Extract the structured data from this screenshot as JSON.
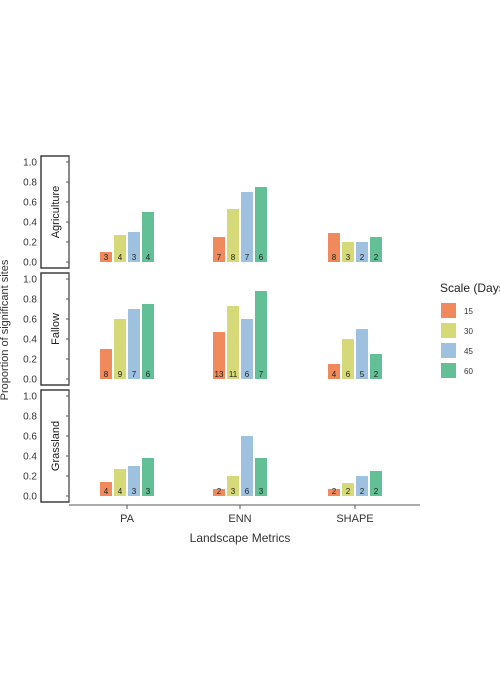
{
  "chart_data": {
    "type": "bar",
    "xlabel": "Landscape Metrics",
    "ylabel": "Proportion of significant sites",
    "ylim": [
      0,
      1.0
    ],
    "yticks": [
      "0.0",
      "0.2",
      "0.4",
      "0.6",
      "0.8",
      "1.0"
    ],
    "categories": [
      "PA",
      "ENN",
      "SHAPE"
    ],
    "grid": false,
    "legend": {
      "title": "Scale (Days)",
      "position": "right",
      "entries": [
        "15",
        "30",
        "45",
        "60"
      ],
      "colors": [
        "#f08a5d",
        "#d5d977",
        "#9ec1e0",
        "#62bf96"
      ]
    },
    "panels": [
      {
        "label": "Agriculture",
        "series": [
          {
            "name": "15",
            "values": [
              0.1,
              0.25,
              0.29
            ],
            "counts": [
              "3",
              "7",
              "8"
            ]
          },
          {
            "name": "30",
            "values": [
              0.27,
              0.53,
              0.2
            ],
            "counts": [
              "4",
              "8",
              "3"
            ]
          },
          {
            "name": "45",
            "values": [
              0.3,
              0.7,
              0.2
            ],
            "counts": [
              "3",
              "7",
              "2"
            ]
          },
          {
            "name": "60",
            "values": [
              0.5,
              0.75,
              0.25
            ],
            "counts": [
              "4",
              "6",
              "2"
            ]
          }
        ]
      },
      {
        "label": "Fallow",
        "series": [
          {
            "name": "15",
            "values": [
              0.3,
              0.47,
              0.15
            ],
            "counts": [
              "8",
              "13",
              "4"
            ]
          },
          {
            "name": "30",
            "values": [
              0.6,
              0.73,
              0.4
            ],
            "counts": [
              "9",
              "11",
              "6"
            ]
          },
          {
            "name": "45",
            "values": [
              0.7,
              0.6,
              0.5
            ],
            "counts": [
              "7",
              "6",
              "5"
            ]
          },
          {
            "name": "60",
            "values": [
              0.75,
              0.88,
              0.25
            ],
            "counts": [
              "6",
              "7",
              "2"
            ]
          }
        ]
      },
      {
        "label": "Grassland",
        "series": [
          {
            "name": "15",
            "values": [
              0.14,
              0.07,
              0.07
            ],
            "counts": [
              "4",
              "2",
              "2"
            ]
          },
          {
            "name": "30",
            "values": [
              0.27,
              0.2,
              0.13
            ],
            "counts": [
              "4",
              "3",
              "2"
            ]
          },
          {
            "name": "45",
            "values": [
              0.3,
              0.6,
              0.2
            ],
            "counts": [
              "3",
              "6",
              "2"
            ]
          },
          {
            "name": "60",
            "values": [
              0.38,
              0.38,
              0.25
            ],
            "counts": [
              "3",
              "3",
              "2"
            ]
          }
        ]
      }
    ]
  }
}
